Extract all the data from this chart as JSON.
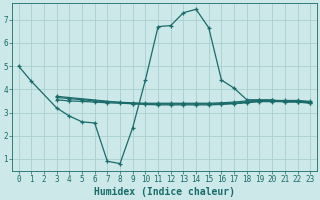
{
  "title": "",
  "xlabel": "Humidex (Indice chaleur)",
  "ylabel": "",
  "xlim": [
    -0.5,
    23.5
  ],
  "ylim": [
    0.5,
    7.7
  ],
  "yticks": [
    1,
    2,
    3,
    4,
    5,
    6,
    7
  ],
  "xticks": [
    0,
    1,
    2,
    3,
    4,
    5,
    6,
    7,
    8,
    9,
    10,
    11,
    12,
    13,
    14,
    15,
    16,
    17,
    18,
    19,
    20,
    21,
    22,
    23
  ],
  "background_color": "#cce8e8",
  "grid_color": "#aacfcf",
  "line_color": "#1a6b6b",
  "series1_x": [
    0,
    1,
    3,
    4,
    5,
    6,
    7,
    8,
    9,
    10,
    11,
    12,
    13,
    14,
    15,
    16,
    17,
    18,
    19,
    20,
    21,
    22,
    23
  ],
  "series1_y": [
    5.0,
    4.35,
    3.2,
    2.85,
    2.6,
    2.55,
    0.9,
    0.8,
    2.35,
    4.4,
    6.7,
    6.75,
    7.3,
    7.45,
    6.65,
    4.4,
    4.05,
    3.55,
    3.55,
    3.55,
    3.45,
    3.45,
    3.4
  ],
  "series2_x": [
    3,
    4,
    5,
    6,
    7,
    8,
    9,
    10,
    11,
    12,
    13,
    14,
    15,
    16,
    17,
    18,
    19,
    20,
    21,
    22,
    23
  ],
  "series2_y": [
    3.55,
    3.5,
    3.48,
    3.45,
    3.42,
    3.4,
    3.38,
    3.37,
    3.37,
    3.37,
    3.37,
    3.37,
    3.37,
    3.38,
    3.4,
    3.45,
    3.5,
    3.5,
    3.5,
    3.5,
    3.45
  ],
  "series3_x": [
    3,
    4,
    5,
    6,
    7,
    8,
    9,
    10,
    11,
    12,
    13,
    14,
    15,
    16,
    17,
    18,
    19,
    20,
    21,
    22,
    23
  ],
  "series3_y": [
    3.65,
    3.6,
    3.55,
    3.5,
    3.47,
    3.44,
    3.42,
    3.4,
    3.4,
    3.4,
    3.4,
    3.4,
    3.4,
    3.42,
    3.45,
    3.5,
    3.52,
    3.52,
    3.52,
    3.52,
    3.48
  ],
  "series4_x": [
    3,
    9,
    10,
    11,
    12,
    13,
    14,
    15,
    16,
    17,
    18,
    19,
    20,
    21,
    22,
    23
  ],
  "series4_y": [
    3.7,
    3.38,
    3.35,
    3.33,
    3.33,
    3.33,
    3.33,
    3.33,
    3.35,
    3.38,
    3.42,
    3.47,
    3.47,
    3.47,
    3.47,
    3.42
  ],
  "font_color": "#1a6b6b",
  "tick_fontsize": 5.5,
  "label_fontsize": 7
}
